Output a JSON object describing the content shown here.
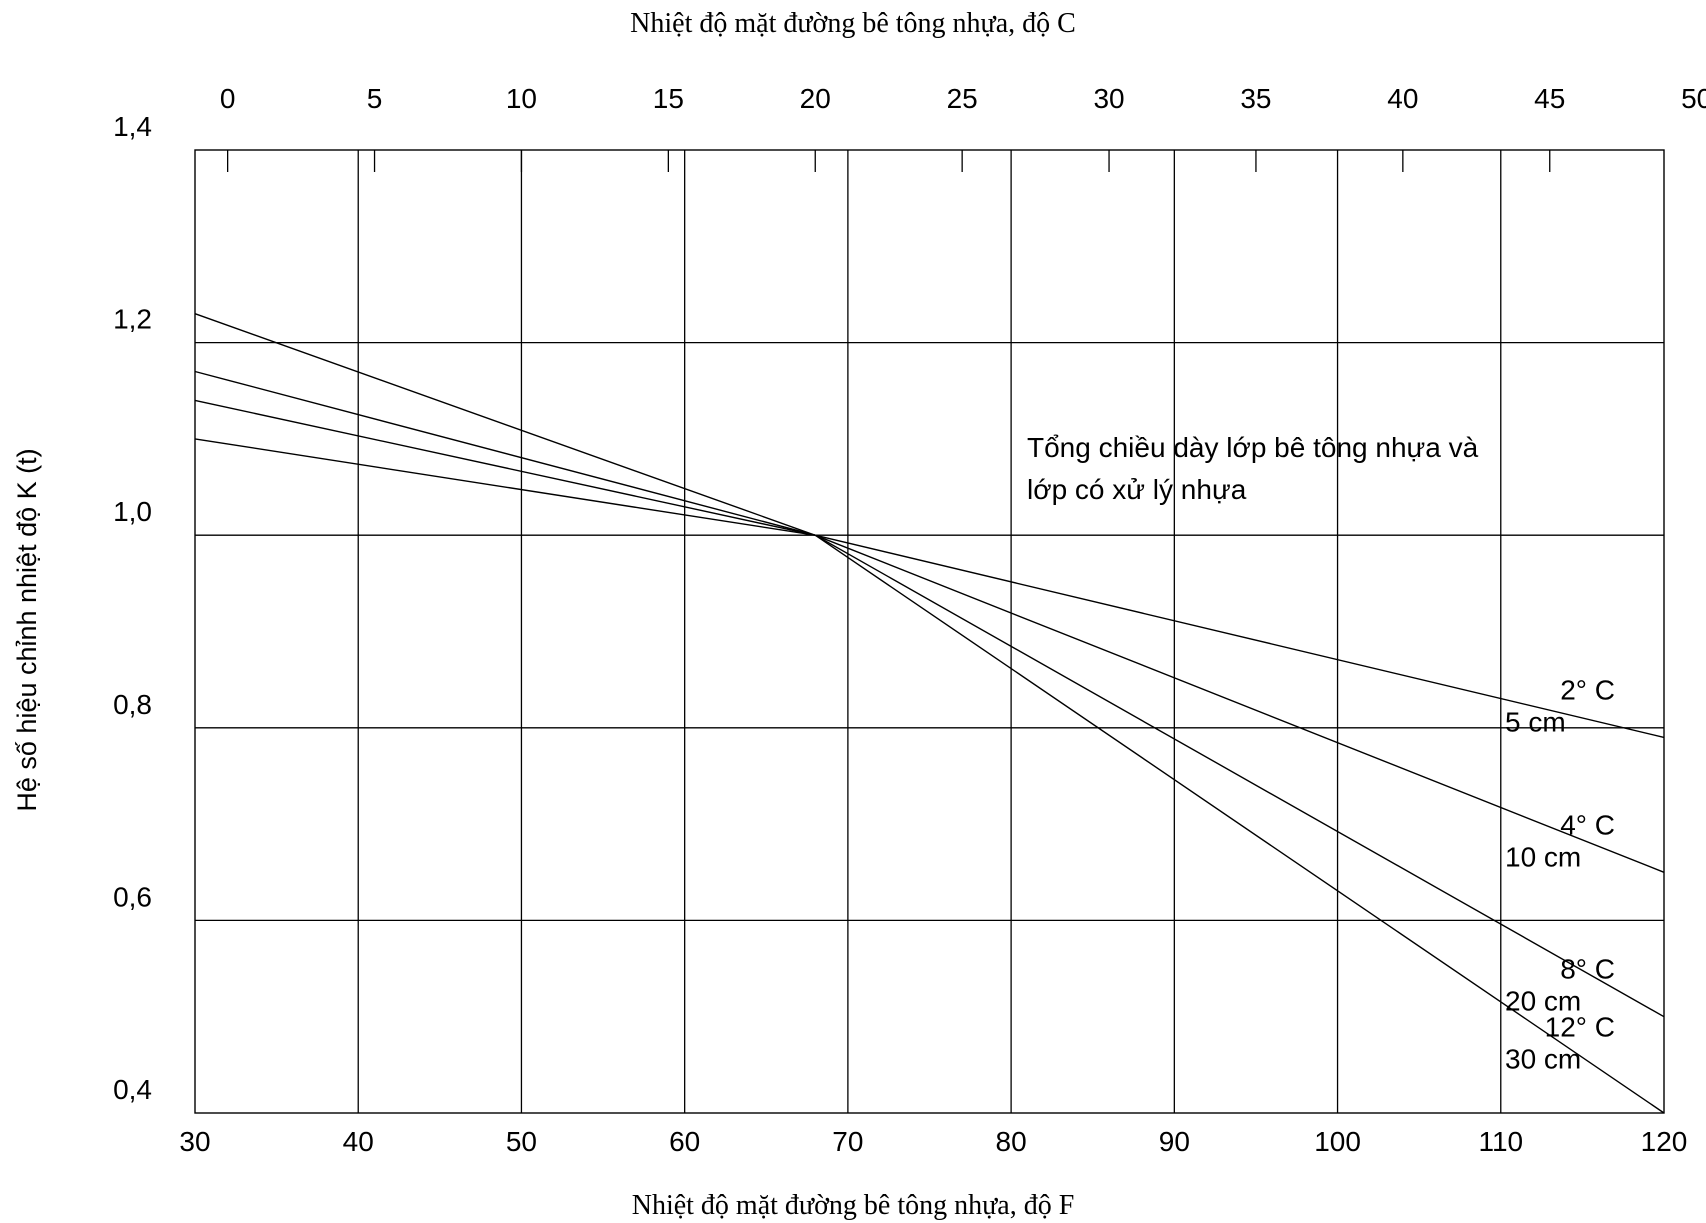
{
  "chart_data": {
    "type": "line",
    "title": "",
    "xlabel": "Nhiệt độ mặt đường bê tông nhựa, độ F",
    "x2label": "Nhiệt độ mặt đường bê tông nhựa, độ C",
    "ylabel": "Hệ số hiệu chỉnh nhiệt độ K (t)",
    "xlim": [
      30,
      120
    ],
    "ylim": [
      0.4,
      1.4
    ],
    "x_ticks": [
      "30",
      "40",
      "50",
      "60",
      "70",
      "80",
      "90",
      "100",
      "110",
      "120"
    ],
    "x2_ticks": [
      "0",
      "5",
      "10",
      "15",
      "20",
      "25",
      "30",
      "35",
      "40",
      "45",
      "50"
    ],
    "y_ticks": [
      "0,4",
      "0,6",
      "0,8",
      "1,0",
      "1,2",
      "1,4"
    ],
    "grid": true,
    "annotation": [
      "Tổng chiều dày lớp bê tông nhựa và",
      "lớp có xử lý nhựa"
    ],
    "series": [
      {
        "name": "5 cm",
        "sublabel": "2° C",
        "x": [
          30,
          68,
          120
        ],
        "y": [
          1.1,
          1.0,
          0.79
        ]
      },
      {
        "name": "10 cm",
        "sublabel": "4° C",
        "x": [
          30,
          68,
          120
        ],
        "y": [
          1.14,
          1.0,
          0.65
        ]
      },
      {
        "name": "20 cm",
        "sublabel": "8° C",
        "x": [
          30,
          68,
          120
        ],
        "y": [
          1.17,
          1.0,
          0.5
        ]
      },
      {
        "name": "30 cm",
        "sublabel": "12° C",
        "x": [
          30,
          68,
          120
        ],
        "y": [
          1.23,
          1.0,
          0.4
        ]
      }
    ]
  }
}
